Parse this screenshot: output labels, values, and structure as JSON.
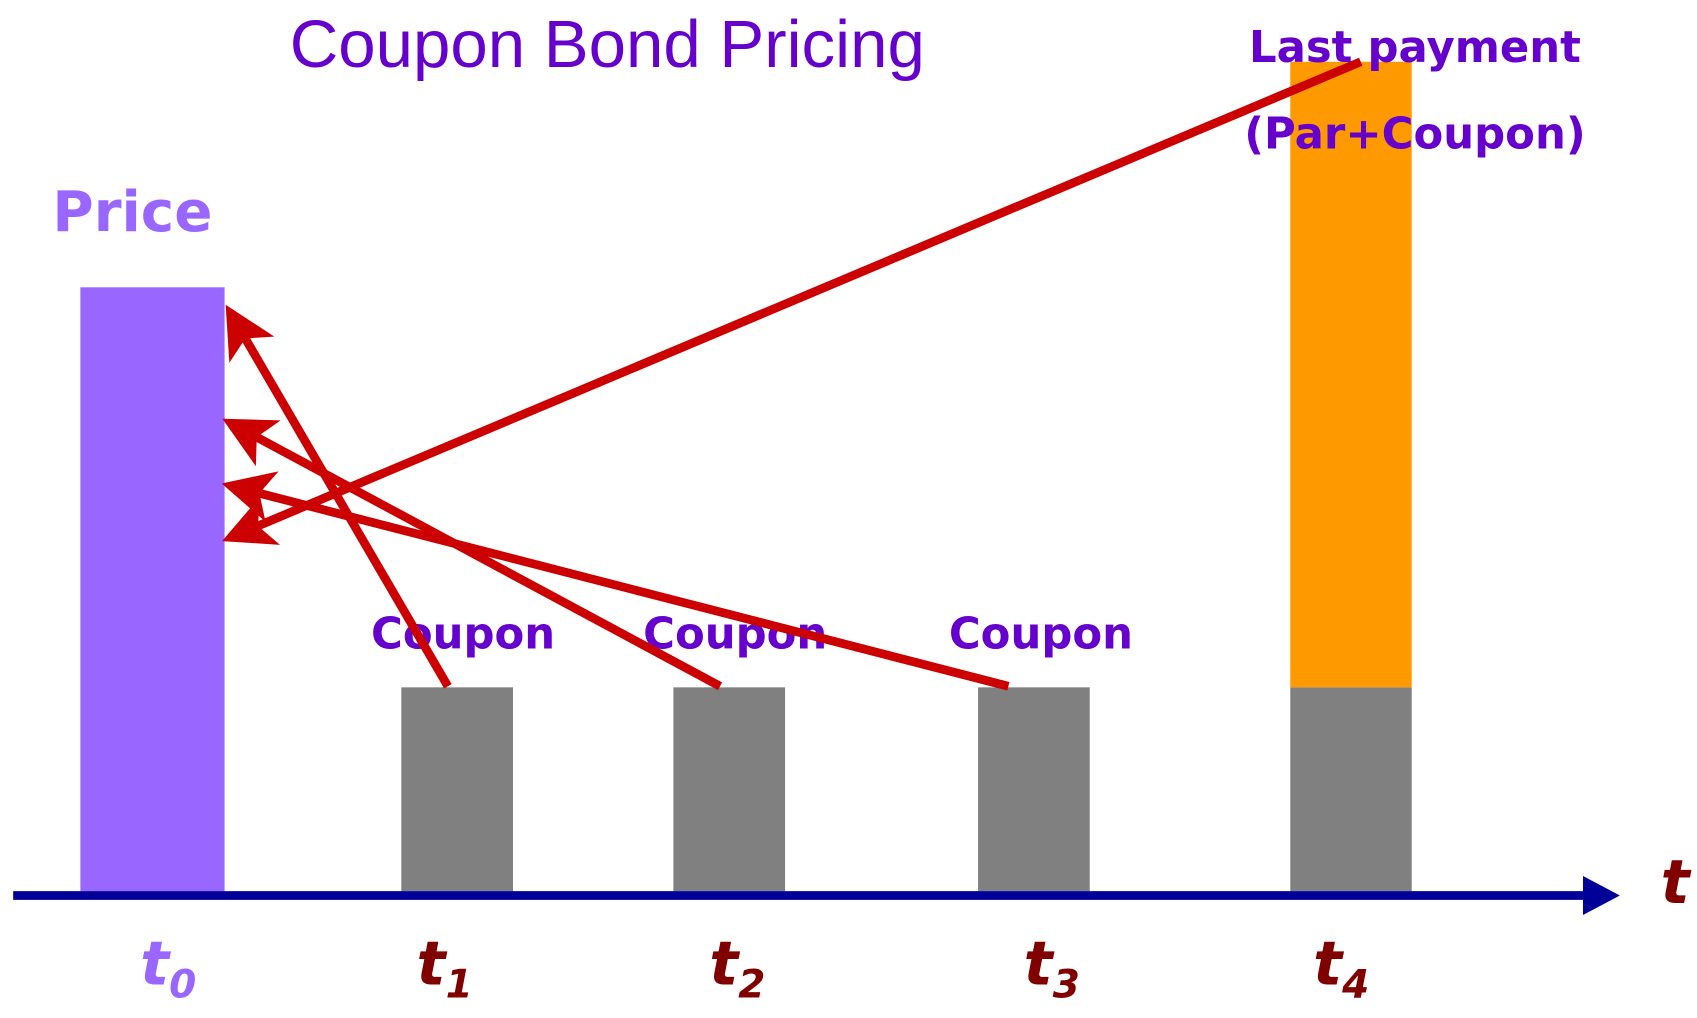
{
  "title": "Coupon Bond Pricing",
  "price_label": "Price",
  "coupon_labels": [
    "Coupon",
    "Coupon",
    "Coupon"
  ],
  "last_payment": {
    "line1": "Last payment",
    "line2": "(Par+Coupon)"
  },
  "axis_label": "t",
  "time_points": [
    {
      "label": "t",
      "sub": "0"
    },
    {
      "label": "t",
      "sub": "1"
    },
    {
      "label": "t",
      "sub": "2"
    },
    {
      "label": "t",
      "sub": "3"
    },
    {
      "label": "t",
      "sub": "4"
    }
  ]
}
